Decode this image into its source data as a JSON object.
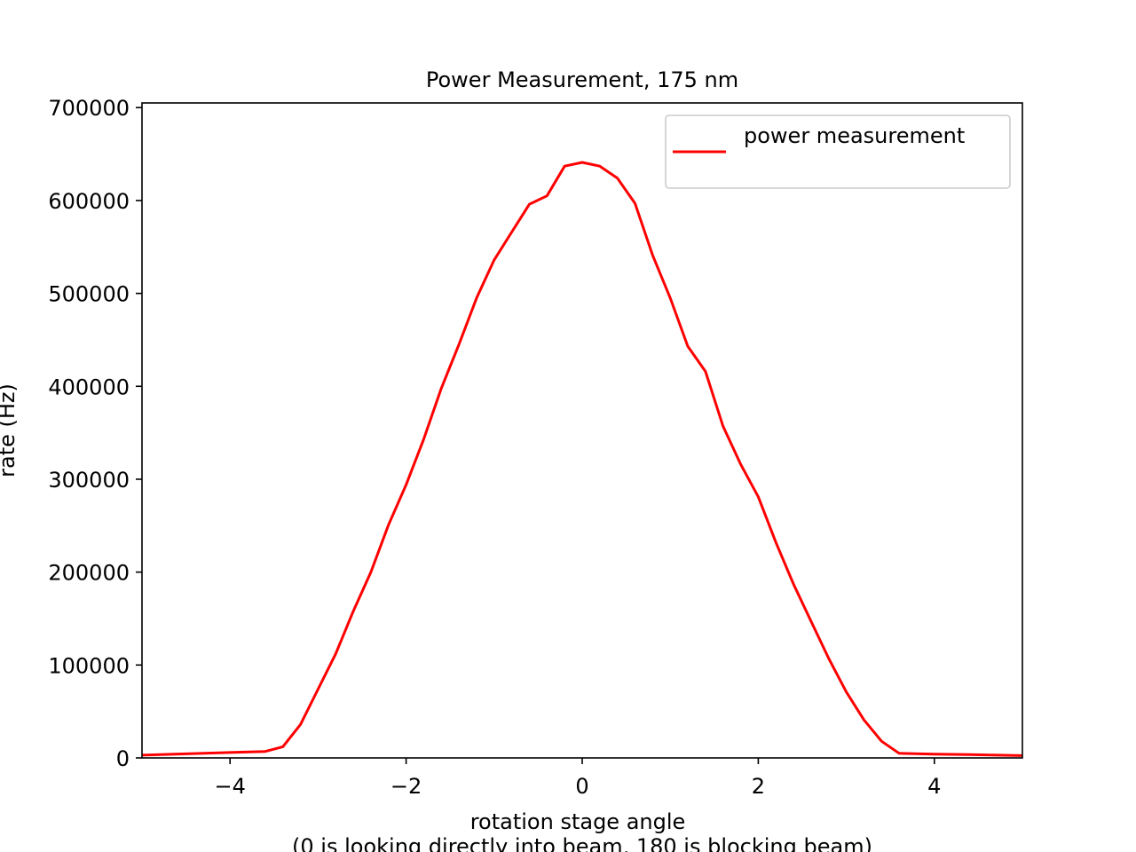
{
  "chart_data": {
    "type": "line",
    "title": "Power Measurement, 175 nm",
    "xlabel_lines": [
      "rotation stage angle",
      "(0 is looking directly into beam, 180 is blocking beam)"
    ],
    "ylabel": "rate (Hz)",
    "xlim": [
      -5,
      5
    ],
    "ylim": [
      0,
      705000
    ],
    "x_ticks": [
      -4,
      -2,
      0,
      2,
      4
    ],
    "x_tick_labels": [
      "−4",
      "−2",
      "0",
      "2",
      "4"
    ],
    "y_ticks": [
      0,
      100000,
      200000,
      300000,
      400000,
      500000,
      600000,
      700000
    ],
    "y_tick_labels": [
      "0",
      "100000",
      "200000",
      "300000",
      "400000",
      "500000",
      "600000",
      "700000"
    ],
    "grid": false,
    "legend_position": "top-right",
    "series": [
      {
        "name": "power measurement",
        "color": "#ff0000",
        "x": [
          -5.0,
          -3.6,
          -3.4,
          -3.2,
          -3.0,
          -2.8,
          -2.6,
          -2.4,
          -2.2,
          -2.0,
          -1.8,
          -1.6,
          -1.4,
          -1.2,
          -1.0,
          -0.8,
          -0.6,
          -0.4,
          -0.2,
          0.0,
          0.2,
          0.4,
          0.6,
          0.8,
          1.0,
          1.2,
          1.4,
          1.6,
          1.8,
          2.0,
          2.2,
          2.4,
          2.6,
          2.8,
          3.0,
          3.2,
          3.4,
          3.6,
          4.0,
          4.4,
          5.0
        ],
        "y": [
          3000,
          7000,
          12000,
          36000,
          74000,
          112000,
          158000,
          200000,
          251000,
          294000,
          343000,
          398000,
          445000,
          495000,
          536000,
          566000,
          596000,
          605000,
          637000,
          641000,
          637000,
          624000,
          597000,
          541000,
          495000,
          443000,
          416000,
          357000,
          316000,
          281000,
          232000,
          187000,
          147000,
          107000,
          71000,
          41000,
          18000,
          5000,
          4000,
          3500,
          2500
        ]
      }
    ]
  }
}
